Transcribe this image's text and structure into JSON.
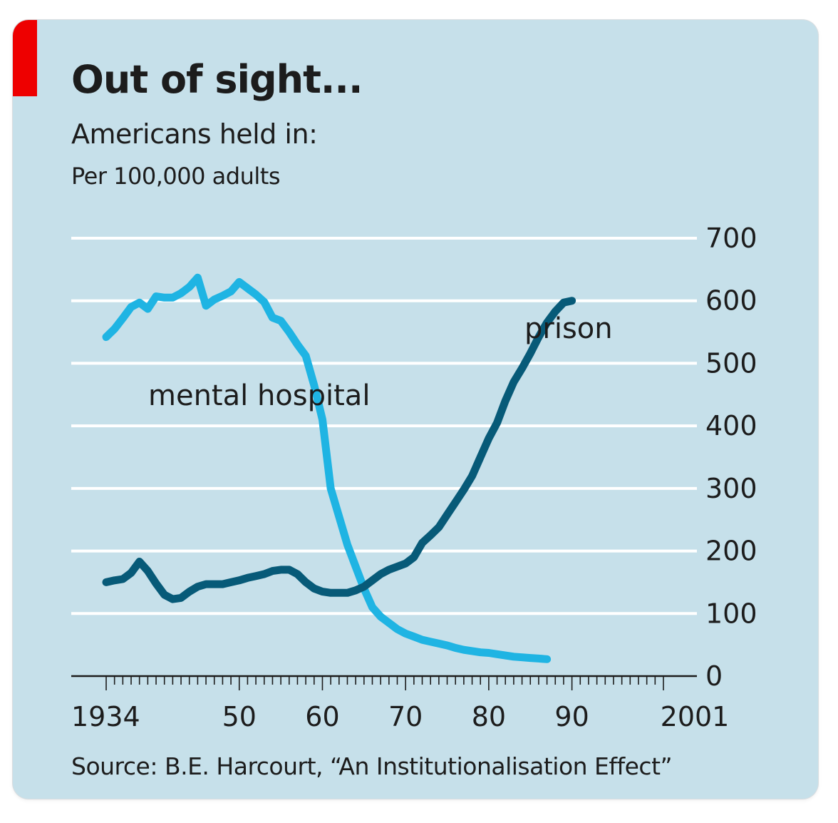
{
  "header": {
    "title": "Out of sight...",
    "subtitle": "Americans held in:",
    "units": "Per 100,000 adults"
  },
  "source": "Source: B.E. Harcourt, “An Institutionalisation Effect”",
  "colors": {
    "background": "#c6e0ea",
    "accent_tag": "#ee0000",
    "mental_hospital": "#1fb4e3",
    "prison": "#075a78",
    "grid": "#ffffff"
  },
  "chart_data": {
    "type": "line",
    "title": "Out of sight...",
    "subtitle": "Americans held in:",
    "ylabel": "Per 100,000 adults",
    "ylim": [
      0,
      700
    ],
    "yticks": [
      0,
      100,
      200,
      300,
      400,
      500,
      600,
      700
    ],
    "xlim": [
      1934,
      2001
    ],
    "xticks": [
      {
        "value": 1934,
        "label": "1934"
      },
      {
        "value": 1950,
        "label": "50"
      },
      {
        "value": 1960,
        "label": "60"
      },
      {
        "value": 1970,
        "label": "70"
      },
      {
        "value": 1980,
        "label": "80"
      },
      {
        "value": 1990,
        "label": "90"
      },
      {
        "value": 2001,
        "label": "2001"
      }
    ],
    "y_axis_side": "right",
    "grid": true,
    "legend": "inline labels",
    "series": [
      {
        "name": "mental hospital",
        "color": "#1fb4e3",
        "points": [
          [
            1934,
            542
          ],
          [
            1935,
            555
          ],
          [
            1936,
            572
          ],
          [
            1937,
            590
          ],
          [
            1938,
            597
          ],
          [
            1939,
            587
          ],
          [
            1940,
            607
          ],
          [
            1941,
            605
          ],
          [
            1942,
            605
          ],
          [
            1943,
            612
          ],
          [
            1944,
            622
          ],
          [
            1945,
            637
          ],
          [
            1946,
            592
          ],
          [
            1947,
            602
          ],
          [
            1948,
            608
          ],
          [
            1949,
            615
          ],
          [
            1950,
            630
          ],
          [
            1951,
            620
          ],
          [
            1952,
            610
          ],
          [
            1953,
            598
          ],
          [
            1954,
            573
          ],
          [
            1955,
            568
          ],
          [
            1956,
            550
          ],
          [
            1957,
            530
          ],
          [
            1958,
            512
          ],
          [
            1959,
            465
          ],
          [
            1960,
            410
          ],
          [
            1961,
            300
          ],
          [
            1962,
            255
          ],
          [
            1963,
            210
          ],
          [
            1964,
            175
          ],
          [
            1965,
            140
          ],
          [
            1966,
            110
          ],
          [
            1967,
            95
          ],
          [
            1968,
            85
          ],
          [
            1969,
            75
          ],
          [
            1970,
            68
          ],
          [
            1971,
            63
          ],
          [
            1972,
            58
          ],
          [
            1973,
            55
          ],
          [
            1974,
            52
          ],
          [
            1975,
            49
          ],
          [
            1976,
            45
          ],
          [
            1977,
            42
          ],
          [
            1978,
            40
          ],
          [
            1979,
            38
          ],
          [
            1980,
            37
          ],
          [
            1981,
            35
          ],
          [
            1982,
            33
          ],
          [
            1983,
            31
          ],
          [
            1984,
            30
          ],
          [
            1985,
            29
          ],
          [
            1986,
            28
          ],
          [
            1987,
            27
          ]
        ]
      },
      {
        "name": "prison",
        "color": "#075a78",
        "points": [
          [
            1934,
            150
          ],
          [
            1935,
            153
          ],
          [
            1936,
            155
          ],
          [
            1937,
            165
          ],
          [
            1938,
            183
          ],
          [
            1939,
            168
          ],
          [
            1940,
            148
          ],
          [
            1941,
            130
          ],
          [
            1942,
            123
          ],
          [
            1943,
            125
          ],
          [
            1944,
            135
          ],
          [
            1945,
            143
          ],
          [
            1946,
            147
          ],
          [
            1947,
            147
          ],
          [
            1948,
            147
          ],
          [
            1949,
            150
          ],
          [
            1950,
            153
          ],
          [
            1951,
            157
          ],
          [
            1952,
            160
          ],
          [
            1953,
            163
          ],
          [
            1954,
            168
          ],
          [
            1955,
            170
          ],
          [
            1956,
            170
          ],
          [
            1957,
            163
          ],
          [
            1958,
            150
          ],
          [
            1959,
            140
          ],
          [
            1960,
            135
          ],
          [
            1961,
            133
          ],
          [
            1962,
            133
          ],
          [
            1963,
            133
          ],
          [
            1964,
            137
          ],
          [
            1965,
            143
          ],
          [
            1966,
            153
          ],
          [
            1967,
            163
          ],
          [
            1968,
            170
          ],
          [
            1969,
            175
          ],
          [
            1970,
            180
          ],
          [
            1971,
            190
          ],
          [
            1972,
            213
          ],
          [
            1973,
            225
          ],
          [
            1974,
            238
          ],
          [
            1975,
            258
          ],
          [
            1976,
            278
          ],
          [
            1977,
            298
          ],
          [
            1978,
            320
          ],
          [
            1979,
            350
          ],
          [
            1980,
            380
          ],
          [
            1981,
            405
          ],
          [
            1982,
            440
          ],
          [
            1983,
            470
          ],
          [
            1984,
            492
          ],
          [
            1985,
            516
          ],
          [
            1986,
            542
          ],
          [
            1987,
            565
          ],
          [
            1988,
            583
          ],
          [
            1989,
            597
          ],
          [
            1990,
            600
          ]
        ]
      }
    ]
  }
}
